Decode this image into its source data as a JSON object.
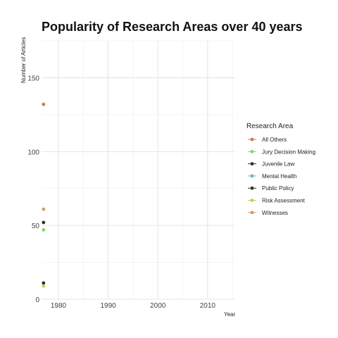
{
  "chart_data": {
    "type": "scatter",
    "title": "Popularity of Research Areas over 40 years",
    "xlabel": "Year",
    "ylabel": "Number of Articles",
    "xlim": [
      1976.6,
      2015.4
    ],
    "ylim": [
      0,
      175
    ],
    "x_ticks": [
      1980,
      1990,
      2000,
      2010
    ],
    "y_ticks": [
      0,
      50,
      100,
      150
    ],
    "grid": true,
    "legend": {
      "title": "Research Area",
      "position": "right"
    },
    "series": [
      {
        "name": "All Others",
        "color": "#D4725C",
        "points": [
          {
            "x": 1977,
            "y": 132
          }
        ]
      },
      {
        "name": "Jury Decision Making",
        "color": "#7ED957",
        "points": [
          {
            "x": 1977,
            "y": 47
          }
        ]
      },
      {
        "name": "Juvenile Law",
        "color": "#2B2D42",
        "points": [
          {
            "x": 1977,
            "y": 11
          }
        ]
      },
      {
        "name": "Mental Health",
        "color": "#6CB4C4",
        "points": []
      },
      {
        "name": "Public Policy",
        "color": "#1F3A30",
        "points": [
          {
            "x": 1977,
            "y": 52
          }
        ]
      },
      {
        "name": "Risk Assessment",
        "color": "#B5D94A",
        "points": [
          {
            "x": 1977,
            "y": 9
          }
        ]
      },
      {
        "name": "Witnesses",
        "color": "#D09A6A",
        "points": [
          {
            "x": 1977,
            "y": 61
          }
        ]
      }
    ]
  }
}
